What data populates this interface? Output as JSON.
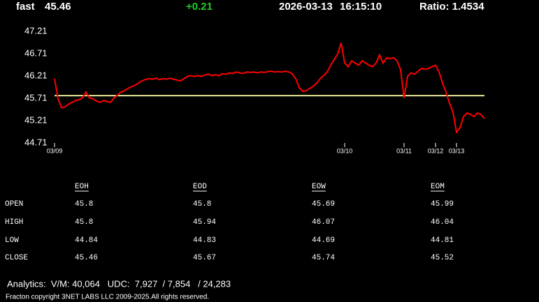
{
  "header": {
    "symbol": "fast",
    "price": "45.46",
    "change": "+0.21",
    "date": "2026-03-13",
    "time": "16:15:10",
    "ratio": "Ratio: 1.4534"
  },
  "chart_data": {
    "type": "line",
    "color": "#ff0000",
    "categories": [
      "03/09",
      null,
      null,
      null,
      null,
      null,
      null,
      null,
      null,
      null,
      null,
      null,
      null,
      null,
      null,
      null,
      null,
      null,
      null,
      null,
      null,
      null,
      null,
      null,
      null,
      null,
      null,
      null,
      null,
      null,
      null,
      null,
      null,
      null,
      null,
      null,
      null,
      null,
      null,
      null,
      null,
      null,
      null,
      null,
      null,
      null,
      null,
      null,
      null,
      null,
      null,
      null,
      null,
      null,
      null,
      null,
      null,
      null,
      null,
      null,
      null,
      null,
      null,
      null,
      null,
      null,
      null,
      null,
      null,
      null,
      null,
      null,
      null,
      null,
      null,
      null,
      null,
      null,
      null,
      null,
      null,
      null,
      null,
      "03/10",
      null,
      null,
      null,
      null,
      null,
      null,
      null,
      null,
      null,
      null,
      null,
      null,
      null,
      null,
      null,
      null,
      "03/11",
      null,
      null,
      null,
      null,
      null,
      null,
      null,
      null,
      "03/12",
      null,
      null,
      null,
      null,
      null,
      "03/13",
      null,
      null,
      null,
      null,
      null,
      null,
      null,
      null
    ],
    "values": [
      46.15,
      45.7,
      45.5,
      45.52,
      45.58,
      45.62,
      45.66,
      45.68,
      45.72,
      45.85,
      45.72,
      45.7,
      45.65,
      45.62,
      45.66,
      45.64,
      45.62,
      45.72,
      45.78,
      45.85,
      45.88,
      45.93,
      45.97,
      46.0,
      46.05,
      46.1,
      46.13,
      46.15,
      46.14,
      46.16,
      46.13,
      46.15,
      46.14,
      46.16,
      46.14,
      46.12,
      46.1,
      46.15,
      46.2,
      46.22,
      46.2,
      46.22,
      46.2,
      46.23,
      46.25,
      46.22,
      46.24,
      46.22,
      46.26,
      46.25,
      46.28,
      46.27,
      46.3,
      46.28,
      46.27,
      46.3,
      46.29,
      46.3,
      46.28,
      46.3,
      46.29,
      46.31,
      46.32,
      46.3,
      46.31,
      46.3,
      46.32,
      46.3,
      46.26,
      46.15,
      45.95,
      45.87,
      45.88,
      45.93,
      45.98,
      46.05,
      46.15,
      46.22,
      46.3,
      46.45,
      46.58,
      46.7,
      46.95,
      46.5,
      46.42,
      46.55,
      46.5,
      46.45,
      46.55,
      46.5,
      46.45,
      46.42,
      46.5,
      46.68,
      46.5,
      46.62,
      46.6,
      46.62,
      46.55,
      46.35,
      45.72,
      46.2,
      46.28,
      46.25,
      46.32,
      46.38,
      46.36,
      46.38,
      46.42,
      46.45,
      46.3,
      46.05,
      45.85,
      45.6,
      45.4,
      44.95,
      45.05,
      45.3,
      45.38,
      45.35,
      45.3,
      45.38,
      45.35,
      45.25
    ],
    "ylim": [
      44.71,
      47.21
    ],
    "yticks": [
      44.71,
      45.21,
      45.71,
      46.21,
      46.71,
      47.21
    ],
    "grid": false,
    "reference_line": {
      "value": 45.77,
      "color": "#e8e89a"
    }
  },
  "table": {
    "columns": [
      "EOH",
      "EOD",
      "EOW",
      "EOM"
    ],
    "rows": [
      [
        "OPEN",
        "45.8",
        "45.8",
        "45.69",
        "45.99"
      ],
      [
        "HIGH",
        "45.8",
        "45.94",
        "46.07",
        "46.04"
      ],
      [
        "LOW",
        "44.84",
        "44.83",
        "44.69",
        "44.81"
      ],
      [
        "CLOSE",
        "45.46",
        "45.67",
        "45.74",
        "45.52"
      ]
    ]
  },
  "footer": {
    "analytics": "Analytics:  V/M: 40,064   UDC:  7,927  / 7,854   / 24,283",
    "copyright": "Fracton copyright 3NET LABS LLC 2009-2025.All rights reserved."
  }
}
